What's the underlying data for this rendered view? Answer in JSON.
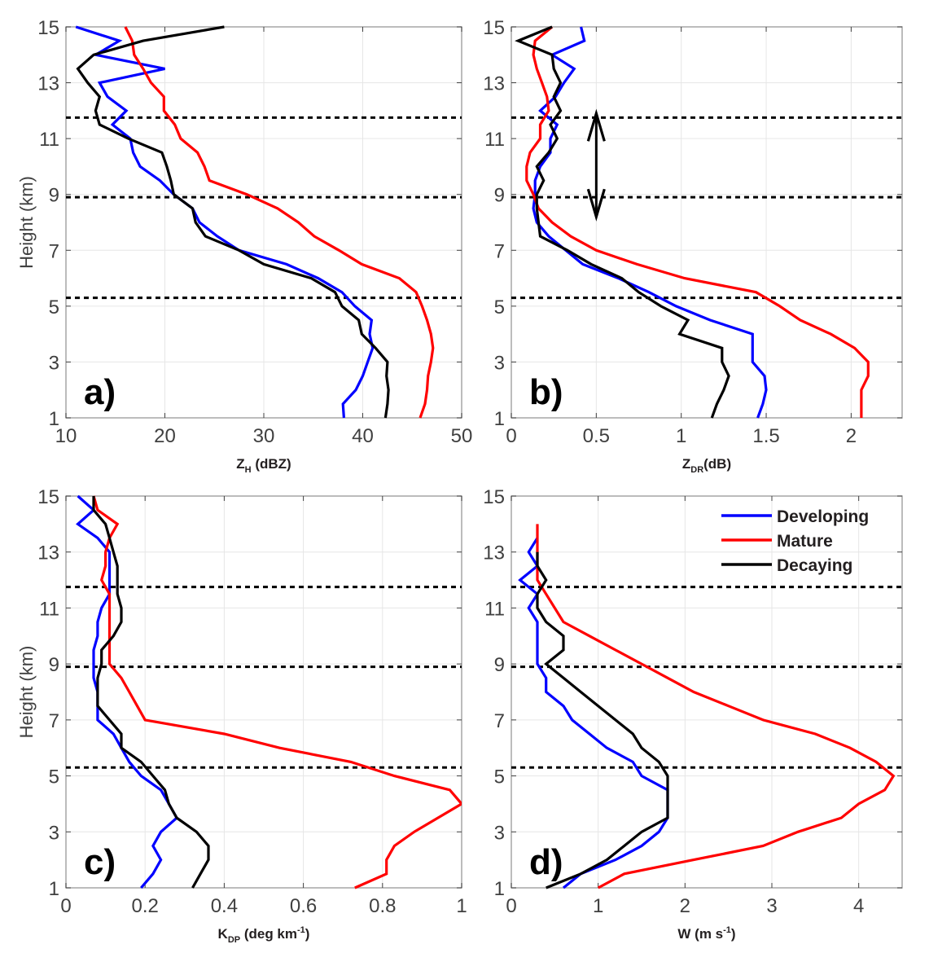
{
  "figure": {
    "series_colors": {
      "Developing": "#0000ff",
      "Mature": "#ff0000",
      "Decaying": "#000000"
    },
    "reference_line_color": "#000000"
  },
  "chart_data": [
    {
      "id": "a",
      "type": "line",
      "panel_label": "a)",
      "xlabel_main": "Z",
      "xlabel_sub": "H",
      "xlabel_rest": " (dBZ)",
      "ylabel": "Height (km)",
      "xlim": [
        10,
        50
      ],
      "ylim": [
        1,
        15
      ],
      "xticks": [
        10,
        20,
        30,
        40,
        50
      ],
      "xtick_labels": [
        "10",
        "20",
        "30",
        "40",
        "50"
      ],
      "yticks": [
        1,
        3,
        5,
        7,
        9,
        11,
        13,
        15
      ],
      "ytick_labels": [
        "1",
        "3",
        "5",
        "7",
        "9",
        "11",
        "13",
        "15"
      ],
      "grid": true,
      "reference_heights": [
        11.75,
        8.9,
        5.3
      ],
      "annotation_arrow": null,
      "legend": null,
      "y": [
        1,
        1.5,
        2,
        2.5,
        3,
        3.5,
        4,
        4.5,
        5,
        5.5,
        6,
        6.5,
        7,
        7.5,
        8,
        8.5,
        9,
        9.5,
        10,
        10.5,
        11,
        11.5,
        12,
        12.5,
        13,
        13.5,
        14,
        14.5,
        15
      ],
      "series": [
        {
          "name": "Developing",
          "values": [
            38.1,
            38.0,
            39.3,
            40.0,
            40.5,
            41.0,
            40.7,
            40.9,
            39.2,
            37.9,
            35.5,
            32.3,
            27.5,
            25.3,
            23.5,
            22.8,
            20.9,
            19.5,
            17.5,
            16.8,
            16.5,
            14.7,
            16.1,
            14.2,
            13.4,
            20.0,
            13.0,
            15.4,
            11.0
          ]
        },
        {
          "name": "Mature",
          "values": [
            45.8,
            46.3,
            46.5,
            46.6,
            46.9,
            47.1,
            46.9,
            46.5,
            46.0,
            45.4,
            43.7,
            39.9,
            37.6,
            35.1,
            33.5,
            31.4,
            28.3,
            24.5,
            24.0,
            23.3,
            21.6,
            21.0,
            19.9,
            19.9,
            18.6,
            17.8,
            16.9,
            16.7,
            16.0
          ]
        },
        {
          "name": "Decaying",
          "values": [
            42.3,
            42.5,
            42.6,
            42.4,
            42.5,
            41.3,
            39.9,
            39.6,
            37.9,
            37.2,
            34.8,
            30.0,
            27.5,
            24.1,
            23.1,
            22.8,
            20.9,
            20.6,
            20.2,
            19.7,
            16.3,
            13.4,
            13.0,
            13.4,
            12.2,
            11.2,
            12.8,
            17.8,
            26.0
          ]
        }
      ]
    },
    {
      "id": "b",
      "type": "line",
      "panel_label": "b)",
      "xlabel_main": "Z",
      "xlabel_sub": "DR",
      "xlabel_rest": "(dB)",
      "ylabel": "",
      "xlim": [
        0,
        2.3
      ],
      "ylim": [
        1,
        15
      ],
      "xticks": [
        0,
        0.5,
        1,
        1.5,
        2
      ],
      "xtick_labels": [
        "0",
        "0.5",
        "1",
        "1.5",
        "2"
      ],
      "yticks": [
        1,
        3,
        5,
        7,
        9,
        11,
        13,
        15
      ],
      "ytick_labels": [
        "1",
        "3",
        "5",
        "7",
        "9",
        "11",
        "13",
        "15"
      ],
      "grid": true,
      "reference_heights": [
        11.75,
        8.9,
        5.3
      ],
      "annotation_arrow": {
        "x": 0.5,
        "y_from": 8.2,
        "y_to": 11.9,
        "style": "double-headed"
      },
      "legend": null,
      "y": [
        1,
        1.5,
        2,
        2.5,
        3,
        3.5,
        4,
        4.5,
        5,
        5.5,
        6,
        6.5,
        7,
        7.5,
        8,
        8.5,
        9,
        9.5,
        10,
        10.5,
        11,
        11.5,
        12,
        12.5,
        13,
        13.5,
        14,
        14.5,
        15
      ],
      "series": [
        {
          "name": "Developing",
          "values": [
            1.45,
            1.48,
            1.5,
            1.49,
            1.42,
            1.42,
            1.42,
            1.17,
            0.97,
            0.81,
            0.63,
            0.42,
            0.32,
            0.22,
            0.15,
            0.13,
            0.14,
            0.14,
            0.17,
            0.23,
            0.23,
            0.27,
            0.17,
            0.26,
            0.31,
            0.37,
            0.24,
            0.43,
            0.41
          ]
        },
        {
          "name": "Mature",
          "values": [
            2.06,
            2.06,
            2.06,
            2.1,
            2.1,
            2.02,
            1.88,
            1.7,
            1.58,
            1.44,
            1.02,
            0.74,
            0.5,
            0.35,
            0.24,
            0.16,
            0.13,
            0.09,
            0.09,
            0.11,
            0.17,
            0.17,
            0.22,
            0.21,
            0.18,
            0.15,
            0.13,
            0.14,
            0.24
          ]
        },
        {
          "name": "Decaying",
          "values": [
            1.18,
            1.21,
            1.25,
            1.28,
            1.24,
            1.24,
            0.99,
            1.04,
            0.88,
            0.75,
            0.65,
            0.47,
            0.33,
            0.17,
            0.16,
            0.15,
            0.15,
            0.19,
            0.15,
            0.22,
            0.27,
            0.23,
            0.29,
            0.25,
            0.29,
            0.25,
            0.24,
            0.04,
            0.24
          ]
        }
      ]
    },
    {
      "id": "c",
      "type": "line",
      "panel_label": "c)",
      "xlabel_main": "K",
      "xlabel_sub": "DP",
      "xlabel_rest": " (deg km",
      "xlabel_sup": "-1",
      "xlabel_end": ")",
      "ylabel": "Height (km)",
      "xlim": [
        0,
        1
      ],
      "ylim": [
        1,
        15
      ],
      "xticks": [
        0,
        0.2,
        0.4,
        0.6,
        0.8,
        1
      ],
      "xtick_labels": [
        "0",
        "0.2",
        "0.4",
        "0.6",
        "0.8",
        "1"
      ],
      "yticks": [
        1,
        3,
        5,
        7,
        9,
        11,
        13,
        15
      ],
      "ytick_labels": [
        "1",
        "3",
        "5",
        "7",
        "9",
        "11",
        "13",
        "15"
      ],
      "grid": true,
      "reference_heights": [
        11.75,
        8.9,
        5.3
      ],
      "annotation_arrow": null,
      "legend": null,
      "y": [
        1,
        1.5,
        2,
        2.5,
        3,
        3.5,
        4,
        4.5,
        5,
        5.5,
        6,
        6.5,
        7,
        7.5,
        8,
        8.5,
        9,
        9.5,
        10,
        10.5,
        11,
        11.5,
        12,
        12.5,
        13,
        13.5,
        14,
        14.5,
        15
      ],
      "series": [
        {
          "name": "Developing",
          "values": [
            0.19,
            0.22,
            0.24,
            0.22,
            0.24,
            0.28,
            0.26,
            0.24,
            0.19,
            0.16,
            0.14,
            0.12,
            0.08,
            0.08,
            0.08,
            0.07,
            0.07,
            0.07,
            0.08,
            0.08,
            0.09,
            0.11,
            0.11,
            0.11,
            0.11,
            0.08,
            0.03,
            0.07,
            0.03
          ]
        },
        {
          "name": "Mature",
          "values": [
            0.73,
            0.81,
            0.81,
            0.83,
            0.88,
            0.94,
            1.0,
            0.97,
            0.83,
            0.72,
            0.54,
            0.4,
            0.2,
            0.18,
            0.16,
            0.14,
            0.11,
            0.11,
            0.11,
            0.11,
            0.11,
            0.11,
            0.09,
            0.1,
            0.1,
            0.11,
            0.13,
            0.08,
            0.07
          ]
        },
        {
          "name": "Decaying",
          "values": [
            0.32,
            0.34,
            0.36,
            0.36,
            0.33,
            0.28,
            0.26,
            0.25,
            0.22,
            0.19,
            0.14,
            0.14,
            0.11,
            0.08,
            0.08,
            0.08,
            0.09,
            0.09,
            0.12,
            0.14,
            0.14,
            0.13,
            0.13,
            0.13,
            0.12,
            0.11,
            0.1,
            0.07,
            0.07
          ]
        }
      ]
    },
    {
      "id": "d",
      "type": "line",
      "panel_label": "d)",
      "xlabel_main": "W (m s",
      "xlabel_sub": "",
      "xlabel_rest": "",
      "xlabel_sup": "-1",
      "xlabel_end": ")",
      "ylabel": "",
      "xlim": [
        0,
        4.5
      ],
      "ylim": [
        1,
        15
      ],
      "xticks": [
        0,
        1,
        2,
        3,
        4
      ],
      "xtick_labels": [
        "0",
        "1",
        "2",
        "3",
        "4"
      ],
      "yticks": [
        1,
        3,
        5,
        7,
        9,
        11,
        13,
        15
      ],
      "ytick_labels": [
        "1",
        "3",
        "5",
        "7",
        "9",
        "11",
        "13",
        "15"
      ],
      "grid": true,
      "reference_heights": [
        11.75,
        8.9,
        5.3
      ],
      "annotation_arrow": null,
      "legend": {
        "placement": "top-right",
        "entries": [
          "Developing",
          "Mature",
          "Decaying"
        ]
      },
      "y": [
        1,
        1.5,
        2,
        2.5,
        3,
        3.5,
        4,
        4.5,
        5,
        5.5,
        6,
        6.5,
        7,
        7.5,
        8,
        8.5,
        9,
        9.5,
        10,
        10.5,
        11,
        11.5,
        12,
        12.5,
        13,
        13.5
      ],
      "series": [
        {
          "name": "Developing",
          "values": [
            0.6,
            0.8,
            1.2,
            1.5,
            1.7,
            1.8,
            1.8,
            1.8,
            1.5,
            1.4,
            1.1,
            0.9,
            0.7,
            0.6,
            0.4,
            0.4,
            0.3,
            0.3,
            0.3,
            0.3,
            0.2,
            0.3,
            0.1,
            0.3,
            0.2,
            0.3
          ]
        },
        {
          "name": "Mature",
          "values": [
            1.0,
            1.3,
            2.1,
            2.9,
            3.3,
            3.8,
            4.0,
            4.3,
            4.4,
            4.2,
            3.9,
            3.5,
            2.9,
            2.5,
            2.1,
            1.8,
            1.5,
            1.2,
            0.9,
            0.6,
            0.5,
            0.4,
            0.3,
            0.3,
            0.3,
            0.3,
            0.3,
            0.3
          ]
        },
        {
          "name": "Decaying",
          "values": [
            0.4,
            0.8,
            1.1,
            1.3,
            1.5,
            1.8,
            1.8,
            1.8,
            1.8,
            1.7,
            1.5,
            1.4,
            1.2,
            1.0,
            0.8,
            0.6,
            0.4,
            0.6,
            0.6,
            0.4,
            0.3,
            0.3,
            0.4,
            0.3,
            0.3
          ]
        }
      ],
      "series_y_overrides": {
        "Mature": [
          1,
          1.5,
          2,
          2.5,
          3,
          3.5,
          4,
          4.5,
          5,
          5.5,
          6,
          6.5,
          7,
          7.5,
          8,
          8.5,
          9,
          9.5,
          10,
          10.5,
          11,
          11.5,
          12,
          12.5,
          13,
          13.5,
          14,
          14
        ],
        "Decaying": [
          1,
          1.5,
          2,
          2.5,
          3,
          3.5,
          4,
          4.5,
          5,
          5.5,
          6,
          6.5,
          7,
          7.5,
          8,
          8.5,
          9,
          9.5,
          10,
          10.5,
          11,
          11.5,
          12,
          12.5,
          13
        ]
      }
    }
  ]
}
